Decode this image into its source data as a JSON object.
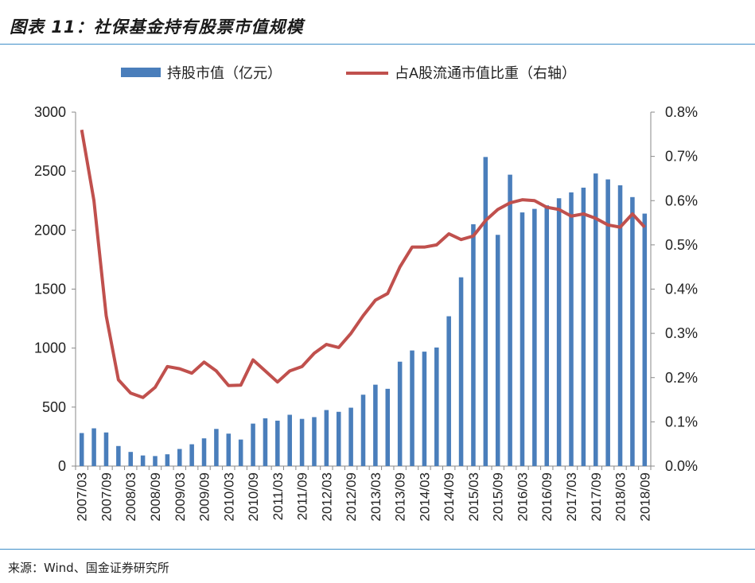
{
  "header": {
    "title": "图表 11：社保基金持有股票市值规模"
  },
  "footer": {
    "source": "来源：Wind、国金证券研究所"
  },
  "colors": {
    "bars": "#4a7ebb",
    "line": "#c0504d",
    "rule": "#3f8fc8"
  },
  "chart_data": {
    "type": "bar",
    "categories": [
      "2007/03",
      "2007/06",
      "2007/09",
      "2007/12",
      "2008/03",
      "2008/06",
      "2008/09",
      "2008/12",
      "2009/03",
      "2009/06",
      "2009/09",
      "2009/12",
      "2010/03",
      "2010/06",
      "2010/09",
      "2010/12",
      "2011/03",
      "2011/06",
      "2011/09",
      "2011/12",
      "2012/03",
      "2012/06",
      "2012/09",
      "2012/12",
      "2013/03",
      "2013/06",
      "2013/09",
      "2013/12",
      "2014/03",
      "2014/06",
      "2014/09",
      "2014/12",
      "2015/03",
      "2015/06",
      "2015/09",
      "2015/12",
      "2016/03",
      "2016/06",
      "2016/09",
      "2016/12",
      "2017/03",
      "2017/06",
      "2017/09",
      "2017/12",
      "2018/03",
      "2018/06",
      "2018/09"
    ],
    "xtick_labels": [
      "2007/03",
      "2007/09",
      "2008/03",
      "2008/09",
      "2009/03",
      "2009/09",
      "2010/03",
      "2010/09",
      "2011/03",
      "2011/09",
      "2012/03",
      "2012/09",
      "2013/03",
      "2013/09",
      "2014/03",
      "2014/09",
      "2015/03",
      "2015/09",
      "2016/03",
      "2016/09",
      "2017/03",
      "2017/09",
      "2018/03",
      "2018/09"
    ],
    "series": [
      {
        "name": "持股市值（亿元）",
        "type": "bar",
        "axis": "left",
        "values": [
          280,
          320,
          285,
          170,
          120,
          90,
          85,
          100,
          145,
          185,
          235,
          315,
          275,
          225,
          360,
          405,
          385,
          435,
          400,
          415,
          475,
          460,
          495,
          605,
          690,
          655,
          885,
          980,
          970,
          1005,
          1270,
          1600,
          2050,
          2620,
          1960,
          2470,
          2150,
          2180,
          2210,
          2270,
          2320,
          2360,
          2480,
          2430,
          2380,
          2280,
          2140
        ]
      },
      {
        "name": "占A股流通市值比重（右轴）",
        "type": "line",
        "axis": "right",
        "values": [
          0.76,
          0.6,
          0.34,
          0.195,
          0.165,
          0.155,
          0.178,
          0.225,
          0.22,
          0.21,
          0.235,
          0.215,
          0.182,
          0.183,
          0.24,
          0.215,
          0.19,
          0.215,
          0.225,
          0.255,
          0.275,
          0.268,
          0.3,
          0.34,
          0.375,
          0.39,
          0.45,
          0.495,
          0.495,
          0.5,
          0.525,
          0.512,
          0.52,
          0.555,
          0.58,
          0.595,
          0.602,
          0.6,
          0.585,
          0.58,
          0.565,
          0.57,
          0.56,
          0.545,
          0.54,
          0.57,
          0.54
        ]
      }
    ],
    "y_left": {
      "min": 0,
      "max": 3000,
      "ticks": [
        "0",
        "500",
        "1000",
        "1500",
        "2000",
        "2500",
        "3000"
      ]
    },
    "y_right": {
      "min": 0,
      "max": 0.8,
      "ticks": [
        "0.0%",
        "0.1%",
        "0.2%",
        "0.3%",
        "0.4%",
        "0.5%",
        "0.6%",
        "0.7%",
        "0.8%"
      ]
    },
    "legend_position": "top",
    "grid": false
  }
}
